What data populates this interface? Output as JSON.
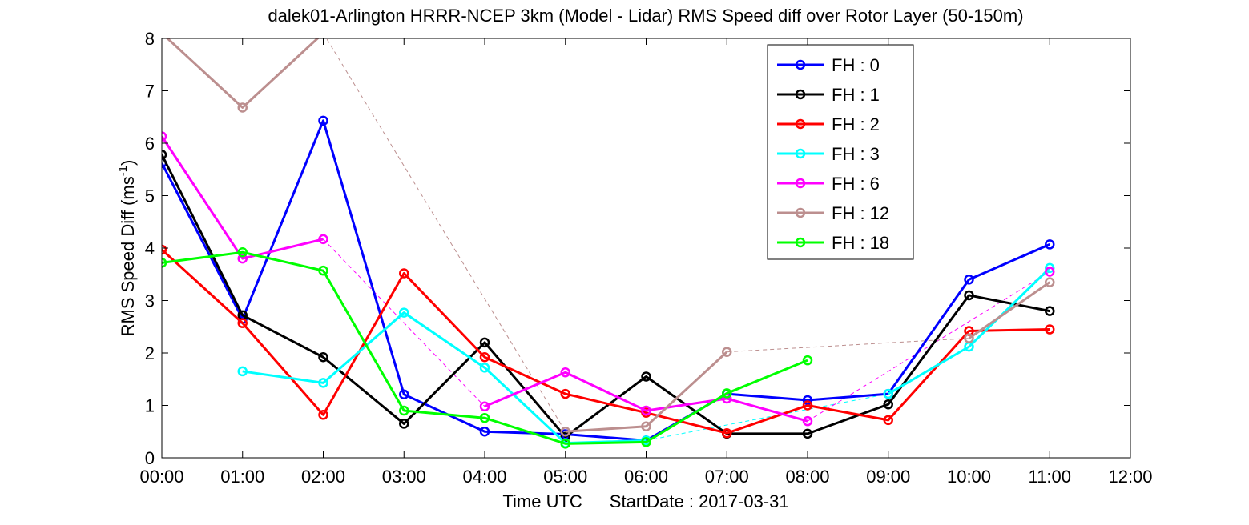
{
  "chart_data": {
    "type": "line",
    "title": "dalek01-Arlington HRRR-NCEP 3km (Model - Lidar) RMS Speed diff over Rotor Layer (50-150m)",
    "xlabel": "Time UTC",
    "xlabel_extra": "StartDate : 2017-03-31",
    "ylabel": "RMS Speed Diff (ms",
    "ylabel_sup": "-1",
    "ylabel_tail": ")",
    "xlim": [
      0,
      12
    ],
    "ylim": [
      0,
      8
    ],
    "xticks": [
      {
        "v": 0,
        "label": "00:00"
      },
      {
        "v": 1,
        "label": "01:00"
      },
      {
        "v": 2,
        "label": "02:00"
      },
      {
        "v": 3,
        "label": "03:00"
      },
      {
        "v": 4,
        "label": "04:00"
      },
      {
        "v": 5,
        "label": "05:00"
      },
      {
        "v": 6,
        "label": "06:00"
      },
      {
        "v": 7,
        "label": "07:00"
      },
      {
        "v": 8,
        "label": "08:00"
      },
      {
        "v": 9,
        "label": "09:00"
      },
      {
        "v": 10,
        "label": "10:00"
      },
      {
        "v": 11,
        "label": "11:00"
      },
      {
        "v": 12,
        "label": "12:00"
      }
    ],
    "yticks": [
      {
        "v": 0,
        "label": "0"
      },
      {
        "v": 1,
        "label": "1"
      },
      {
        "v": 2,
        "label": "2"
      },
      {
        "v": 3,
        "label": "3"
      },
      {
        "v": 4,
        "label": "4"
      },
      {
        "v": 5,
        "label": "5"
      },
      {
        "v": 6,
        "label": "6"
      },
      {
        "v": 7,
        "label": "7"
      },
      {
        "v": 8,
        "label": "8"
      }
    ],
    "grid": false,
    "legend_position": "top-right",
    "series": [
      {
        "name": "FH : 0",
        "color": "#0000ff",
        "x": [
          0,
          1,
          2,
          3,
          4,
          5,
          6,
          7,
          8,
          9,
          10,
          11
        ],
        "y": [
          5.62,
          2.65,
          6.43,
          1.21,
          0.5,
          0.45,
          0.33,
          1.22,
          1.1,
          1.22,
          3.4,
          4.07
        ]
      },
      {
        "name": "FH : 1",
        "color": "#000000",
        "x": [
          0,
          1,
          2,
          3,
          4,
          5,
          6,
          7,
          8,
          9,
          10,
          11
        ],
        "y": [
          5.78,
          2.72,
          1.92,
          0.65,
          2.2,
          0.4,
          1.55,
          0.46,
          0.46,
          1.02,
          3.1,
          2.8
        ]
      },
      {
        "name": "FH : 2",
        "color": "#ff0000",
        "x": [
          0,
          1,
          2,
          3,
          4,
          5,
          6,
          7,
          8,
          9,
          10,
          11
        ],
        "y": [
          3.97,
          2.57,
          0.82,
          3.52,
          1.92,
          1.22,
          0.86,
          0.47,
          1.0,
          0.72,
          2.42,
          2.45
        ]
      },
      {
        "name": "FH : 3",
        "color": "#00ffff",
        "x": [
          1,
          2,
          3,
          4,
          5,
          6,
          7,
          8,
          9,
          10,
          11
        ],
        "y": [
          1.65,
          1.43,
          2.77,
          1.72,
          0.28,
          0.33,
          null,
          null,
          1.22,
          2.12,
          3.62
        ],
        "dashed_gaps": [
          [
            6,
            0.33,
            9,
            1.22
          ]
        ]
      },
      {
        "name": "FH : 6",
        "color": "#ff00ff",
        "x": [
          0,
          1,
          2,
          3,
          4,
          5,
          6,
          7,
          8,
          9,
          10,
          11
        ],
        "y": [
          6.13,
          3.8,
          4.17,
          null,
          0.98,
          1.63,
          0.9,
          1.13,
          0.7,
          null,
          null,
          3.55
        ],
        "dashed_gaps": [
          [
            2,
            4.17,
            4,
            0.98
          ],
          [
            8,
            0.7,
            11,
            3.55
          ]
        ]
      },
      {
        "name": "FH : 12",
        "color": "#bc8f8f",
        "x": [
          0,
          1,
          2,
          3,
          4,
          5,
          6,
          7,
          8,
          9,
          10,
          11
        ],
        "y": [
          8.1,
          6.68,
          8.1,
          null,
          null,
          0.5,
          0.6,
          2.02,
          null,
          null,
          2.28,
          3.35
        ],
        "dashed_gaps": [
          [
            2,
            8.1,
            5,
            0.5
          ],
          [
            7,
            2.02,
            10,
            2.28
          ]
        ]
      },
      {
        "name": "FH : 18",
        "color": "#00ff00",
        "x": [
          0,
          1,
          2,
          3,
          4,
          5,
          6,
          7,
          8
        ],
        "y": [
          3.72,
          3.92,
          3.57,
          0.9,
          0.76,
          0.27,
          0.3,
          1.23,
          1.86
        ]
      }
    ]
  }
}
